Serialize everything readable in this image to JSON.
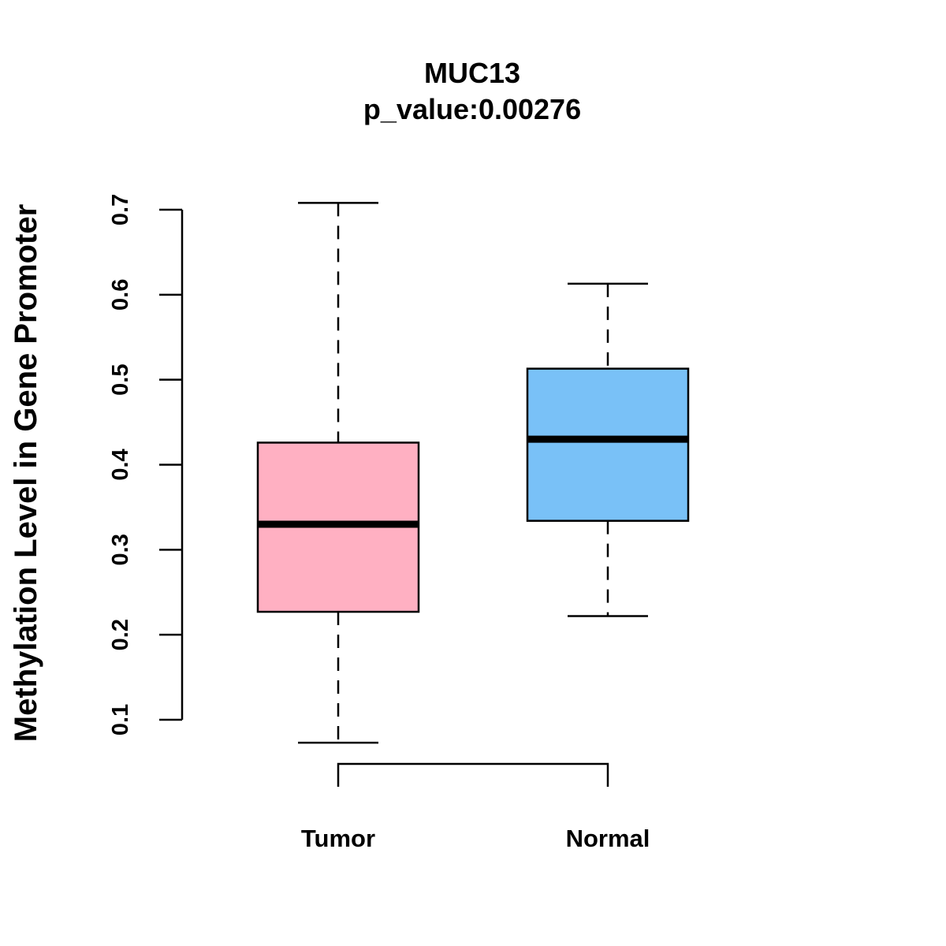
{
  "chart_data": {
    "type": "boxplot",
    "title": "MUC13",
    "subtitle": "p_value:0.00276",
    "ylabel": "Methylation Level in Gene Promoter",
    "xlabel": "",
    "ylim": [
      0.1,
      0.7
    ],
    "yticks": [
      "0.1",
      "0.2",
      "0.3",
      "0.4",
      "0.5",
      "0.6",
      "0.7"
    ],
    "categories": [
      "Tumor",
      "Normal"
    ],
    "boxes": [
      {
        "name": "Tumor",
        "whisker_low": 0.073,
        "q1": 0.227,
        "median": 0.33,
        "q3": 0.426,
        "whisker_high": 0.708,
        "color": "#FFB0C2"
      },
      {
        "name": "Normal",
        "whisker_low": 0.222,
        "q1": 0.334,
        "median": 0.43,
        "q3": 0.513,
        "whisker_high": 0.613,
        "color": "#79C1F7"
      }
    ],
    "comparison_bracket": [
      "Tumor",
      "Normal"
    ]
  }
}
